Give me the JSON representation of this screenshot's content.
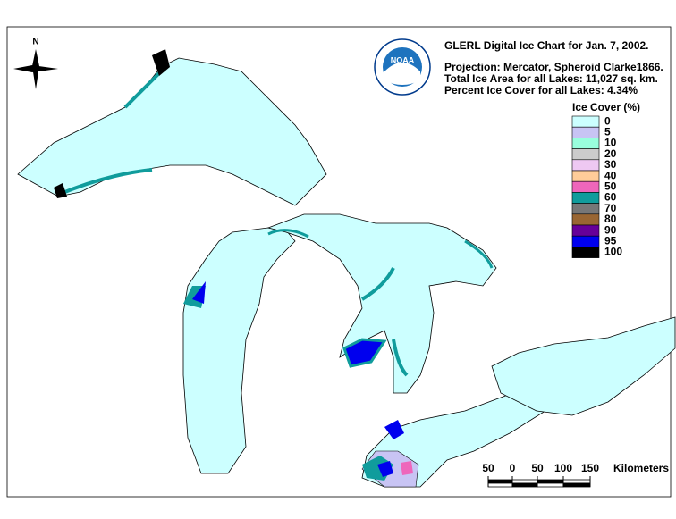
{
  "header": {
    "title": "GLERL Digital Ice Chart for Jan. 7, 2002.",
    "projection": "Projection:  Mercator, Spheroid Clarke1866.",
    "total_area": "Total Ice Area for all Lakes: 11,027 sq. km.",
    "percent_cover": "Percent Ice Cover for all Lakes:  4.34%"
  },
  "logo": {
    "text": "NOAA"
  },
  "north": {
    "label": "N"
  },
  "legend": {
    "title": "Ice Cover (%)",
    "items": [
      {
        "label": "0",
        "color": "#ccffff"
      },
      {
        "label": "5",
        "color": "#c8c4f4"
      },
      {
        "label": "10",
        "color": "#99ffdd"
      },
      {
        "label": "20",
        "color": "#cccccc"
      },
      {
        "label": "30",
        "color": "#eec8f2"
      },
      {
        "label": "40",
        "color": "#ffcc99"
      },
      {
        "label": "50",
        "color": "#ee66bb"
      },
      {
        "label": "60",
        "color": "#109c9c"
      },
      {
        "label": "70",
        "color": "#777777"
      },
      {
        "label": "80",
        "color": "#996633"
      },
      {
        "label": "90",
        "color": "#660099"
      },
      {
        "label": "95",
        "color": "#0000ee"
      },
      {
        "label": "100",
        "color": "#000000"
      }
    ]
  },
  "scale": {
    "labels": [
      "50",
      "0",
      "50",
      "100",
      "150"
    ],
    "unit": "Kilometers"
  }
}
